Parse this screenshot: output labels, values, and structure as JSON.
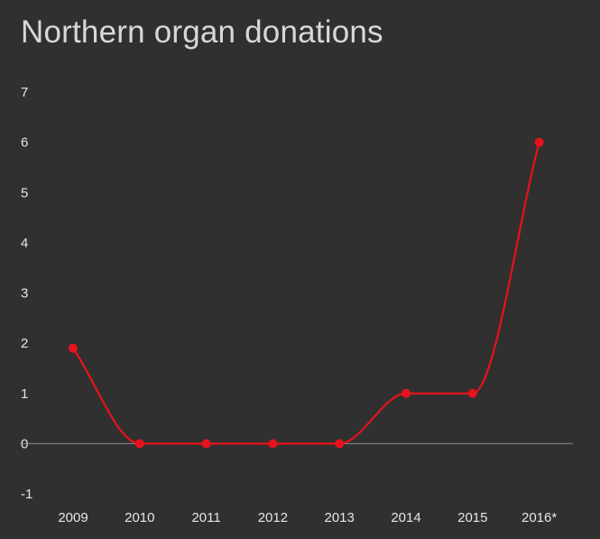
{
  "chart_data": {
    "type": "line",
    "title": "Northern organ donations",
    "categories": [
      "2009",
      "2010",
      "2011",
      "2012",
      "2013",
      "2014",
      "2015",
      "2016*"
    ],
    "series": [
      {
        "values": [
          1.9,
          0,
          0,
          0,
          0,
          1,
          1,
          6
        ]
      }
    ],
    "ylim": [
      -1,
      7
    ],
    "yticks": [
      -1,
      0,
      1,
      2,
      3,
      4,
      5,
      6,
      7
    ],
    "xlabel": "",
    "ylabel": "",
    "grid": false,
    "colors": {
      "line": "#e8121c",
      "background": "#303030",
      "title": "#d8d8d8",
      "ticks": "#e6e6e6",
      "zero_line": "#8a8a8a"
    }
  }
}
